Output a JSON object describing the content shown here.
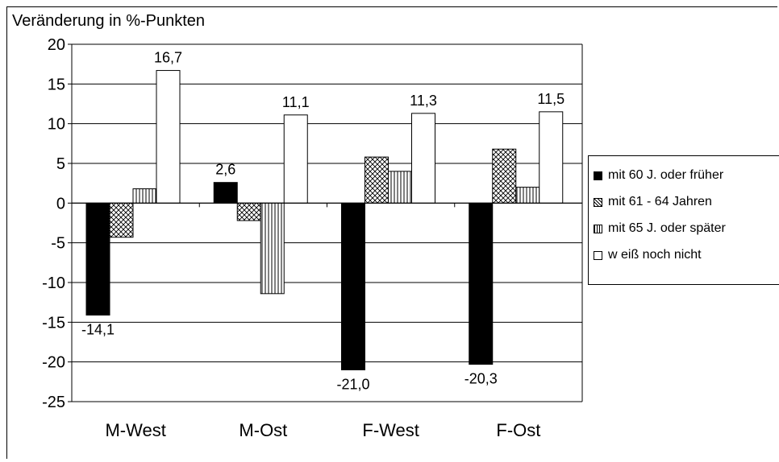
{
  "chart_data": {
    "type": "bar",
    "ylabel": "Veränderung in %-Punkten",
    "xlabel": "",
    "ylim": [
      -25,
      20
    ],
    "yticks": [
      20,
      15,
      10,
      5,
      0,
      -5,
      -10,
      -15,
      -20,
      -25
    ],
    "ytick_labels": [
      "20",
      "15",
      "10",
      "5",
      "0",
      "-5",
      "-10",
      "-15",
      "-20",
      "-25"
    ],
    "categories": [
      "M-West",
      "M-Ost",
      "F-West",
      "F-Ost"
    ],
    "grid": true,
    "legend_position": "right",
    "series": [
      {
        "name": "mit 60 J. oder früher",
        "values": [
          -14.1,
          2.6,
          -21.0,
          -20.3
        ],
        "pattern": "solid-black",
        "data_labels": [
          "-14,1",
          "2,6",
          "-21,0",
          "-20,3"
        ]
      },
      {
        "name": "mit 61 - 64 Jahren",
        "values": [
          -4.3,
          -2.2,
          5.8,
          6.8
        ],
        "pattern": "crosshatch",
        "data_labels": [
          "",
          "",
          "",
          ""
        ]
      },
      {
        "name": "mit 65 J. oder später",
        "values": [
          1.8,
          -11.4,
          4.0,
          2.0
        ],
        "pattern": "vertical-stripes",
        "data_labels": [
          "",
          "",
          "",
          ""
        ]
      },
      {
        "name": "w eiß noch nicht",
        "values": [
          16.7,
          11.1,
          11.3,
          11.5
        ],
        "pattern": "white",
        "data_labels": [
          "16,7",
          "11,1",
          "11,3",
          "11,5"
        ]
      }
    ]
  }
}
